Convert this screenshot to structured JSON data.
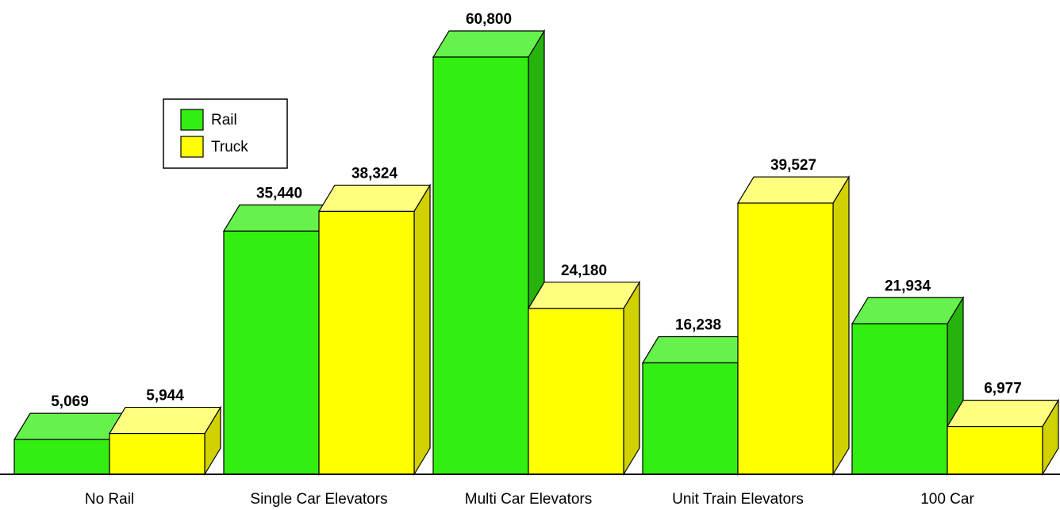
{
  "chart_data": {
    "type": "bar3d",
    "categories": [
      "No Rail",
      "Single Car Elevators",
      "Multi Car Elevators",
      "Unit Train Elevators",
      "100 Car"
    ],
    "series": [
      {
        "name": "Rail",
        "color": "#33ee11",
        "values": [
          5069,
          35440,
          60800,
          16238,
          21934
        ],
        "value_labels": [
          "5,069",
          "35,440",
          "60,800",
          "16,238",
          "21,934"
        ]
      },
      {
        "name": "Truck",
        "color": "#ffff00",
        "values": [
          5944,
          38324,
          24180,
          39527,
          6977
        ],
        "value_labels": [
          "5,944",
          "38,324",
          "24,180",
          "39,527",
          "6,977"
        ]
      }
    ],
    "legend": "upper left"
  }
}
